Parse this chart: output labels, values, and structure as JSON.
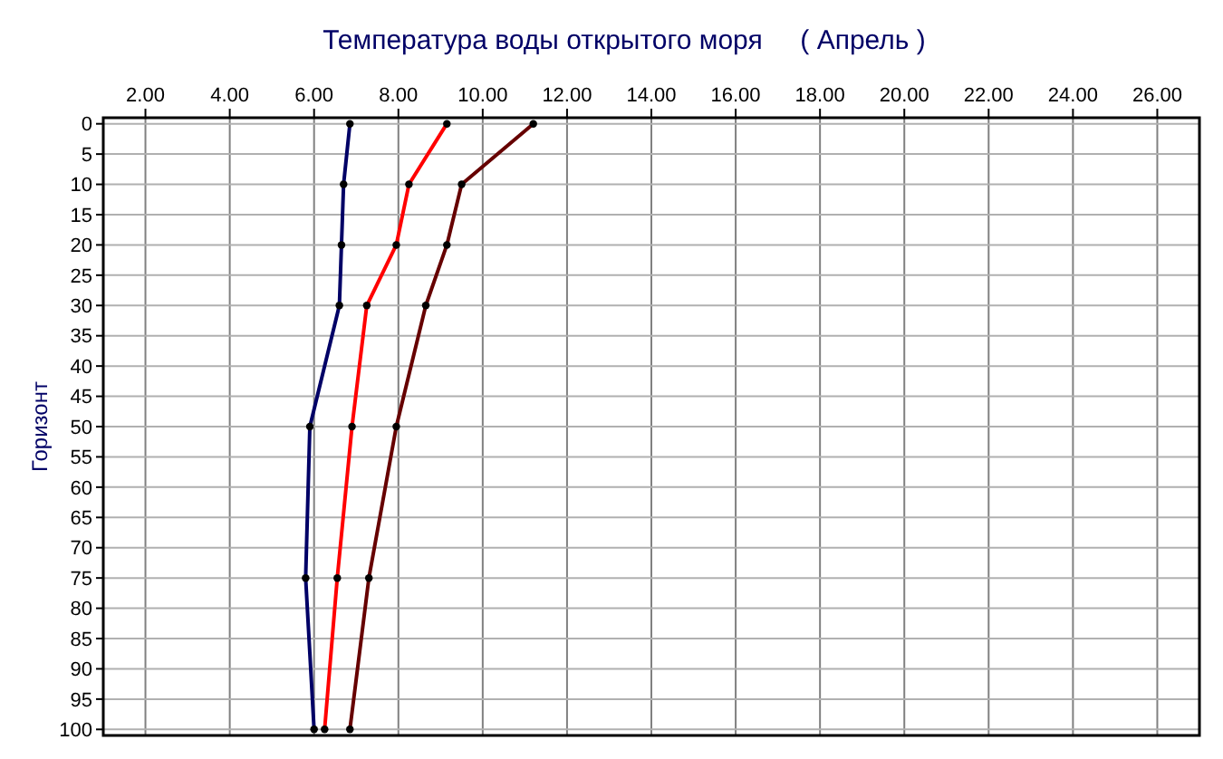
{
  "chart_data": {
    "type": "line",
    "title": "Температура воды открытого моря     ( Апрель )",
    "ylabel": "Горизонт",
    "xlim": [
      1,
      27
    ],
    "ylim": [
      101,
      -1
    ],
    "xticks": [
      {
        "value": 2,
        "label": "2.00"
      },
      {
        "value": 4,
        "label": "4.00"
      },
      {
        "value": 6,
        "label": "6.00"
      },
      {
        "value": 8,
        "label": "8.00"
      },
      {
        "value": 10,
        "label": "10.00"
      },
      {
        "value": 12,
        "label": "12.00"
      },
      {
        "value": 14,
        "label": "14.00"
      },
      {
        "value": 16,
        "label": "16.00"
      },
      {
        "value": 18,
        "label": "18.00"
      },
      {
        "value": 20,
        "label": "20.00"
      },
      {
        "value": 22,
        "label": "22.00"
      },
      {
        "value": 24,
        "label": "24.00"
      },
      {
        "value": 26,
        "label": "26.00"
      }
    ],
    "yticks": [
      0,
      5,
      10,
      15,
      20,
      25,
      30,
      35,
      40,
      45,
      50,
      55,
      60,
      65,
      70,
      75,
      80,
      85,
      90,
      95,
      100
    ],
    "grid": true,
    "marker": "circle",
    "line_style": "solid",
    "series": [
      {
        "color": "#000066",
        "x": [
          6.85,
          6.7,
          6.65,
          6.6,
          5.9,
          5.8,
          6.0
        ],
        "values": [
          0,
          10,
          20,
          30,
          50,
          75,
          100
        ]
      },
      {
        "color": "#ff0000",
        "x": [
          9.15,
          8.25,
          7.95,
          7.25,
          6.9,
          6.55,
          6.25
        ],
        "values": [
          0,
          10,
          20,
          30,
          50,
          75,
          100
        ]
      },
      {
        "color": "#660000",
        "x": [
          11.2,
          9.5,
          9.15,
          8.65,
          7.95,
          7.3,
          6.85
        ],
        "values": [
          0,
          10,
          20,
          30,
          50,
          75,
          100
        ]
      }
    ]
  }
}
